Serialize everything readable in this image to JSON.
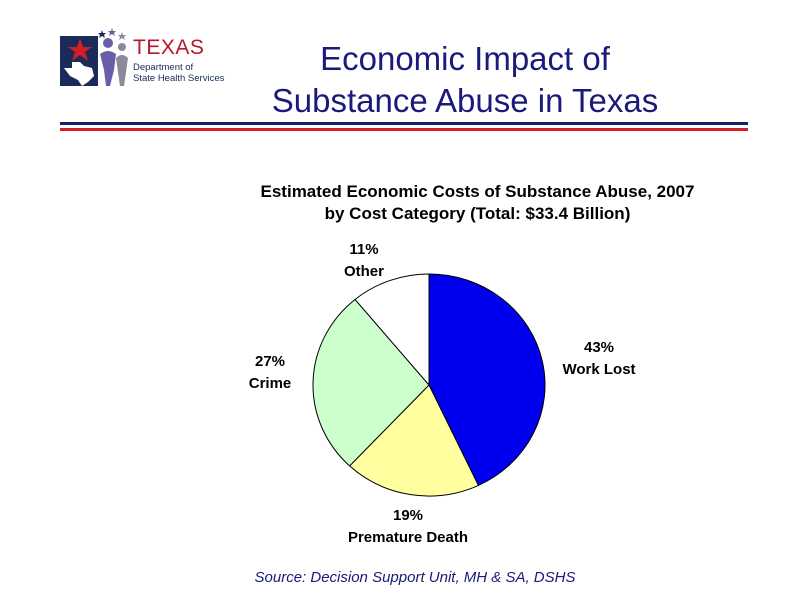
{
  "header": {
    "title_line1": "Economic Impact of",
    "title_line2": "Substance Abuse in Texas"
  },
  "logo": {
    "org_line1": "TEXAS",
    "org_line2": "Department of",
    "org_line3": "State Health Services"
  },
  "chart_data": {
    "type": "pie",
    "title": "Estimated Economic Costs of Substance Abuse, 2007",
    "subtitle": "by Cost Category (Total: $33.4 Billion)",
    "slices": [
      {
        "label": "Work Lost",
        "percent_label": "43%",
        "value": 43,
        "color": "#0000ee"
      },
      {
        "label": "Premature Death",
        "percent_label": "19%",
        "value": 19,
        "color": "#ffffa0"
      },
      {
        "label": "Crime",
        "percent_label": "27%",
        "value": 27,
        "color": "#ccffcc"
      },
      {
        "label": "Other",
        "percent_label": "11%",
        "value": 11,
        "color": "#ffffff"
      }
    ]
  },
  "source": "Source: Decision Support Unit, MH & SA, DSHS"
}
